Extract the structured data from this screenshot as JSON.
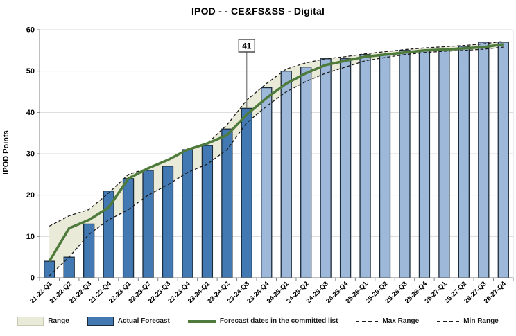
{
  "chart_data": {
    "type": "bar",
    "title": "IPOD -  - CE&FS&SS - Digital",
    "xlabel": "",
    "ylabel": "IPOD Points",
    "ylim": [
      0,
      60
    ],
    "ytick_step": 10,
    "grid": "horizontal",
    "legend_position": "bottom",
    "categories": [
      "21-22-Q1",
      "21-22-Q2",
      "21-22-Q3",
      "21-22-Q4",
      "22-23-Q1",
      "22-23-Q2",
      "22-23-Q3",
      "22-23-Q4",
      "23-24-Q1",
      "23-24-Q2",
      "23-24-Q3",
      "23-24-Q4",
      "24-25-Q1",
      "24-25-Q2",
      "24-25-Q3",
      "24-25-Q4",
      "25-26-Q1",
      "25-26-Q2",
      "25-26-Q3",
      "25-26-Q4",
      "26-27-Q1",
      "26-27-Q2",
      "26-27-Q3",
      "26-27-Q4"
    ],
    "series": [
      {
        "name": "Actual Forecast",
        "type": "bar",
        "values": [
          4,
          5,
          13,
          21,
          24,
          26,
          27,
          31,
          32,
          36,
          41,
          46,
          50,
          51,
          53,
          53,
          54,
          54,
          55,
          55,
          55,
          56,
          57,
          57
        ]
      },
      {
        "name": "Forecast dates in the committed list",
        "type": "line",
        "values": [
          4,
          12,
          14,
          17,
          24,
          26.5,
          28.5,
          31,
          32.5,
          34.5,
          39.5,
          43.5,
          47,
          49.5,
          51.5,
          52.5,
          53.5,
          54,
          54.5,
          55,
          55.2,
          55.5,
          55.8,
          56.5
        ]
      },
      {
        "name": "Max Range",
        "type": "dashed-line",
        "values": [
          12.5,
          15,
          16.5,
          20.5,
          25,
          26.5,
          28.5,
          31,
          32.5,
          37,
          43,
          47,
          50.5,
          52,
          53,
          53.5,
          54.2,
          54.7,
          55.2,
          55.6,
          55.9,
          56.2,
          56.6,
          57.2
        ]
      },
      {
        "name": "Min Range",
        "type": "dashed-line",
        "values": [
          0.5,
          5,
          10.5,
          14,
          16.5,
          20,
          22.5,
          25.5,
          27.5,
          31,
          37.5,
          41.5,
          45,
          47.5,
          49.5,
          51,
          52.5,
          53.3,
          54,
          54.5,
          54.8,
          55,
          55.3,
          55.8
        ]
      },
      {
        "name": "Range",
        "type": "band",
        "between": [
          "Min Range",
          "Max Range"
        ]
      }
    ],
    "bar_style_split": {
      "forecast_start_category": "23-24-Q4",
      "note": "bars before split are darker (actuals), from split onward lighter (forecast)"
    },
    "annotation": {
      "label": "41",
      "category": "23-24-Q3",
      "value": 41
    },
    "colors": {
      "bar_actual": "#4279b2",
      "bar_forecast": "#9db8d9",
      "bar_border": "#1c2b3a",
      "committed_line": "#4e7b3c",
      "range_fill": "#e9ead8",
      "range_fill_border": "#c9cab4",
      "dash_line": "#1a1a1a",
      "gridline": "#d9d9d9",
      "axis": "#7f7f7f",
      "text": "#000000"
    },
    "legend_items": [
      {
        "label": "Range",
        "swatch": "band"
      },
      {
        "label": "Actual Forecast",
        "swatch": "bar"
      },
      {
        "label": "Forecast dates in the committed list",
        "swatch": "line"
      },
      {
        "label": "Max Range",
        "swatch": "dash"
      },
      {
        "label": "Min Range",
        "swatch": "dash"
      }
    ]
  }
}
